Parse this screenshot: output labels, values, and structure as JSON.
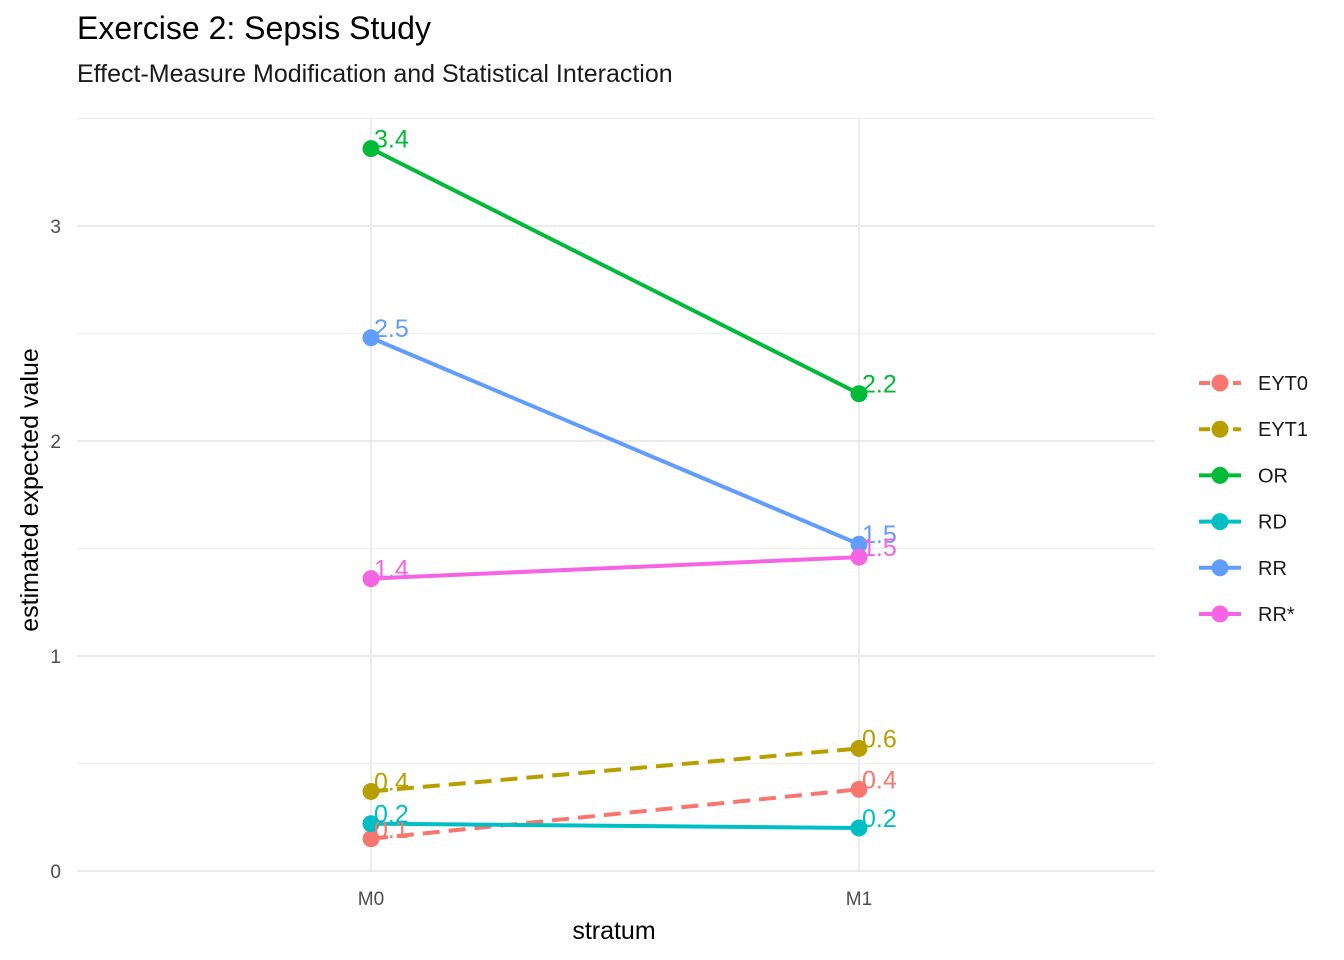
{
  "title": "Exercise 2: Sepsis Study",
  "subtitle": "Effect-Measure Modification and Statistical Interaction",
  "chart_data": {
    "type": "line",
    "xlabel": "stratum",
    "ylabel": "estimated expected value",
    "categories": [
      "M0",
      "M1"
    ],
    "y_ticks": [
      "0",
      "1",
      "2",
      "3"
    ],
    "ylim": [
      0,
      3.5
    ],
    "grid": true,
    "legend_position": "right",
    "series": [
      {
        "name": "EYT0",
        "values": [
          0.15,
          0.38
        ],
        "labels": [
          "0.1",
          "0.4"
        ],
        "color": "#F8766D",
        "dash": true
      },
      {
        "name": "EYT1",
        "values": [
          0.37,
          0.57
        ],
        "labels": [
          "0.4",
          "0.6"
        ],
        "color": "#B79F00",
        "dash": true
      },
      {
        "name": "OR",
        "values": [
          3.36,
          2.22
        ],
        "labels": [
          "3.4",
          "2.2"
        ],
        "color": "#00BA38",
        "dash": false
      },
      {
        "name": "RD",
        "values": [
          0.22,
          0.2
        ],
        "labels": [
          "0.2",
          "0.2"
        ],
        "color": "#00BFC4",
        "dash": false
      },
      {
        "name": "RR",
        "values": [
          2.48,
          1.52
        ],
        "labels": [
          "2.5",
          "1.5"
        ],
        "color": "#619CFF",
        "dash": false
      },
      {
        "name": "RR*",
        "values": [
          1.36,
          1.46
        ],
        "labels": [
          "1.4",
          "1.5"
        ],
        "color": "#F564E3",
        "dash": false
      }
    ]
  }
}
